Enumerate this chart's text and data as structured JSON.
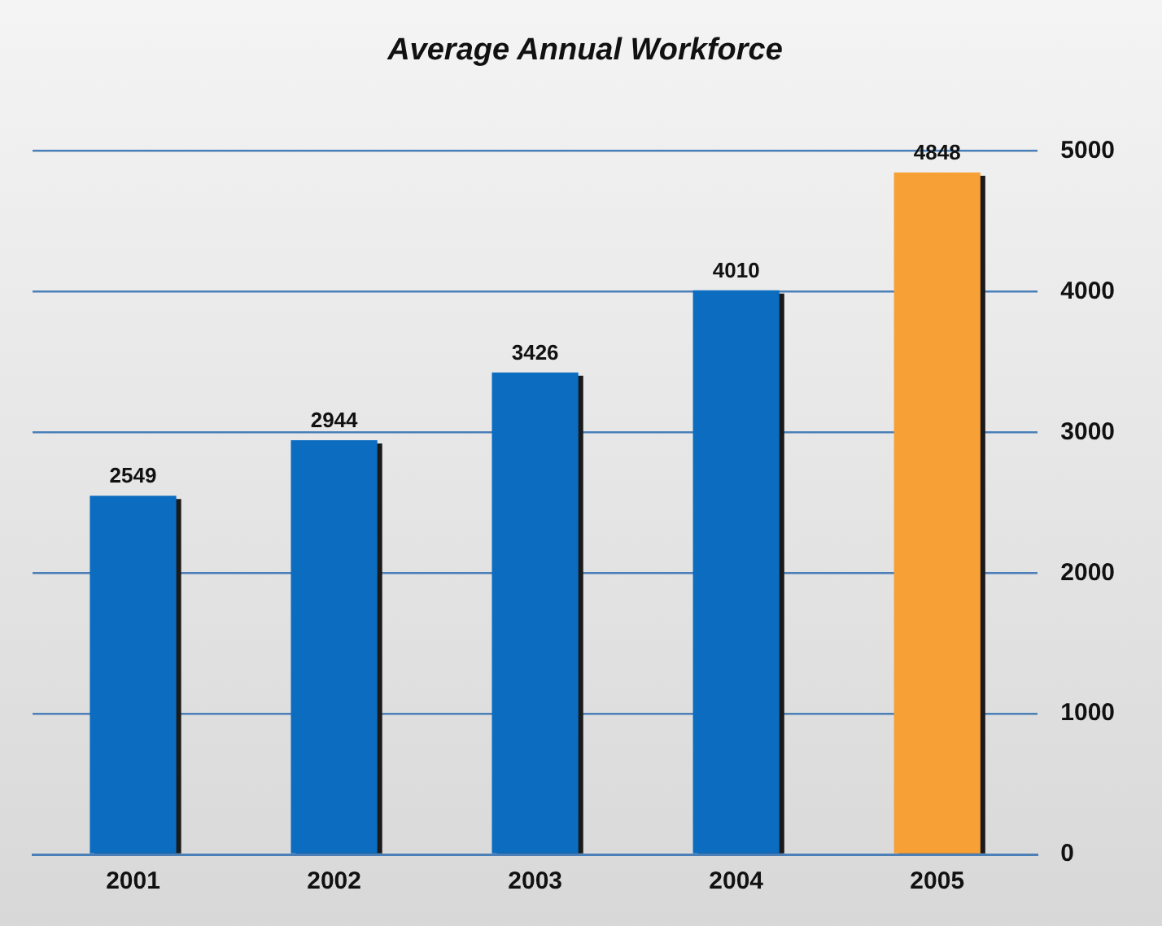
{
  "chart_data": {
    "type": "bar",
    "title": "Average Annual Workforce",
    "categories": [
      "2001",
      "2002",
      "2003",
      "2004",
      "2005"
    ],
    "values": [
      2549,
      2944,
      3426,
      4010,
      4848
    ],
    "colors": [
      "#0b6cc0",
      "#0b6cc0",
      "#0b6cc0",
      "#0b6cc0",
      "#f7a035"
    ],
    "ylim": [
      0,
      5000
    ],
    "yticks": [
      0,
      1000,
      2000,
      3000,
      4000,
      5000
    ],
    "grid": "y",
    "legend": false,
    "data_labels": true
  }
}
